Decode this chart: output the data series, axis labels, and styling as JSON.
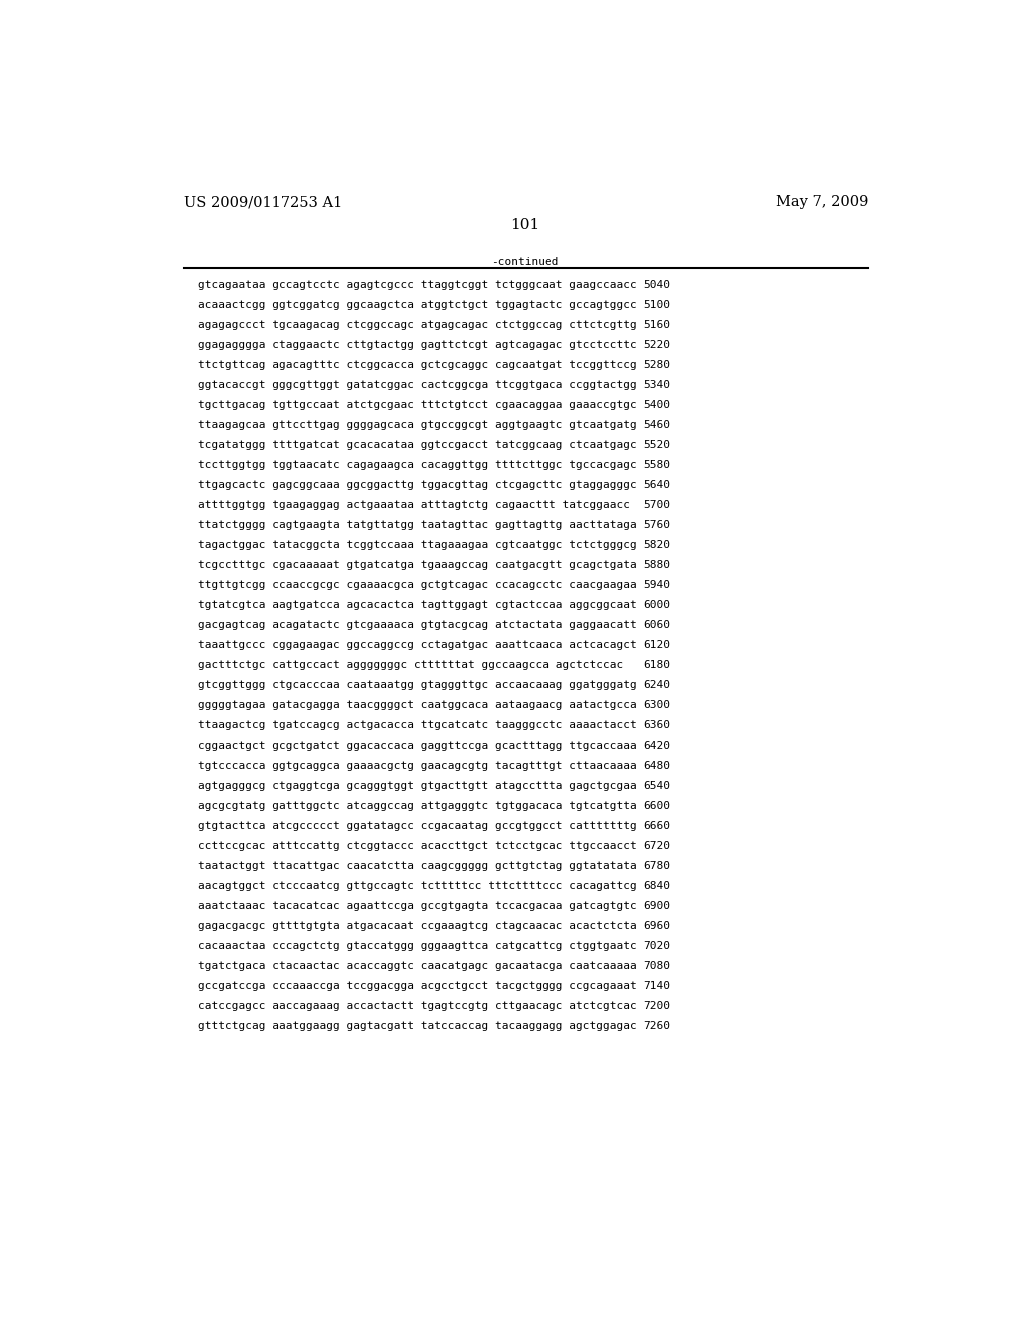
{
  "header_left": "US 2009/0117253 A1",
  "header_right": "May 7, 2009",
  "page_number": "101",
  "continued_label": "-continued",
  "background_color": "#ffffff",
  "text_color": "#000000",
  "font_size": 8.0,
  "header_font_size": 10.5,
  "page_num_font_size": 11,
  "sequence_lines": [
    [
      "gtcagaataa gccagtcctc agagtcgccc ttaggtcggt tctgggcaat gaagccaacc",
      "5040"
    ],
    [
      "acaaactcgg ggtcggatcg ggcaagctca atggtctgct tggagtactc gccagtggcc",
      "5100"
    ],
    [
      "agagagccct tgcaagacag ctcggccagc atgagcagac ctctggccag cttctcgttg",
      "5160"
    ],
    [
      "ggagagggga ctaggaactc cttgtactgg gagttctcgt agtcagagac gtcctccttc",
      "5220"
    ],
    [
      "ttctgttcag agacagtttc ctcggcacca gctcgcaggc cagcaatgat tccggttccg",
      "5280"
    ],
    [
      "ggtacaccgt gggcgttggt gatatcggac cactcggcga ttcggtgaca ccggtactgg",
      "5340"
    ],
    [
      "tgcttgacag tgttgccaat atctgcgaac tttctgtcct cgaacaggaa gaaaccgtgc",
      "5400"
    ],
    [
      "ttaagagcaa gttccttgag ggggagcaca gtgccggcgt aggtgaagtc gtcaatgatg",
      "5460"
    ],
    [
      "tcgatatggg ttttgatcat gcacacataa ggtccgacct tatcggcaag ctcaatgagc",
      "5520"
    ],
    [
      "tccttggtgg tggtaacatc cagagaagca cacaggttgg ttttcttggc tgccacgagc",
      "5580"
    ],
    [
      "ttgagcactc gagcggcaaa ggcggacttg tggacgttag ctcgagcttc gtaggagggc",
      "5640"
    ],
    [
      "attttggtgg tgaagaggag actgaaataa atttagtctg cagaacttt tatcggaacc",
      "5700"
    ],
    [
      "ttatctgggg cagtgaagta tatgttatgg taatagttac gagttagttg aacttataga",
      "5760"
    ],
    [
      "tagactggac tatacggcta tcggtccaaa ttagaaagaa cgtcaatggc tctctgggcg",
      "5820"
    ],
    [
      "tcgcctttgc cgacaaaaat gtgatcatga tgaaagccag caatgacgtt gcagctgata",
      "5880"
    ],
    [
      "ttgttgtcgg ccaaccgcgc cgaaaacgca gctgtcagac ccacagcctc caacgaagaa",
      "5940"
    ],
    [
      "tgtatcgtca aagtgatcca agcacactca tagttggagt cgtactccaa aggcggcaat",
      "6000"
    ],
    [
      "gacgagtcag acagatactc gtcgaaaaca gtgtacgcag atctactata gaggaacatt",
      "6060"
    ],
    [
      "taaattgccc cggagaagac ggccaggccg cctagatgac aaattcaaca actcacagct",
      "6120"
    ],
    [
      "gactttctgc cattgccact agggggggc cttttttat ggccaagcca agctctccac",
      "6180"
    ],
    [
      "gtcggttggg ctgcacccaa caataaatgg gtagggttgc accaacaaag ggatgggatg",
      "6240"
    ],
    [
      "gggggtagaa gatacgagga taacggggct caatggcaca aataagaacg aatactgcca",
      "6300"
    ],
    [
      "ttaagactcg tgatccagcg actgacacca ttgcatcatc taagggcctc aaaactacct",
      "6360"
    ],
    [
      "cggaactgct gcgctgatct ggacaccaca gaggttccga gcactttagg ttgcaccaaa",
      "6420"
    ],
    [
      "tgtcccacca ggtgcaggca gaaaacgctg gaacagcgtg tacagtttgt cttaacaaaa",
      "6480"
    ],
    [
      "agtgagggcg ctgaggtcga gcagggtggt gtgacttgtt atagccttta gagctgcgaa",
      "6540"
    ],
    [
      "agcgcgtatg gatttggctc atcaggccag attgagggtc tgtggacaca tgtcatgtta",
      "6600"
    ],
    [
      "gtgtacttca atcgccccct ggatatagcc ccgacaatag gccgtggcct catttttttg",
      "6660"
    ],
    [
      "ccttccgcac atttccattg ctcggtaccc acaccttgct tctcctgcac ttgccaacct",
      "6720"
    ],
    [
      "taatactggt ttacattgac caacatctta caagcggggg gcttgtctag ggtatatata",
      "6780"
    ],
    [
      "aacagtggct ctcccaatcg gttgccagtc tctttttcc tttcttttccc cacagattcg",
      "6840"
    ],
    [
      "aaatctaaac tacacatcac agaattccga gccgtgagta tccacgacaa gatcagtgtc",
      "6900"
    ],
    [
      "gagacgacgc gttttgtgta atgacacaat ccgaaagtcg ctagcaacac acactctcta",
      "6960"
    ],
    [
      "cacaaactaa cccagctctg gtaccatggg gggaagttca catgcattcg ctggtgaatc",
      "7020"
    ],
    [
      "tgatctgaca ctacaactac acaccaggtc caacatgagc gacaatacga caatcaaaaa",
      "7080"
    ],
    [
      "gccgatccga cccaaaccga tccggacgga acgcctgcct tacgctgggg ccgcagaaat",
      "7140"
    ],
    [
      "catccgagcc aaccagaaag accactactt tgagtccgtg cttgaacagc atctcgtcac",
      "7200"
    ],
    [
      "gtttctgcag aaatggaagg gagtacgatt tatccaccag tacaaggagg agctggagac",
      "7260"
    ]
  ]
}
